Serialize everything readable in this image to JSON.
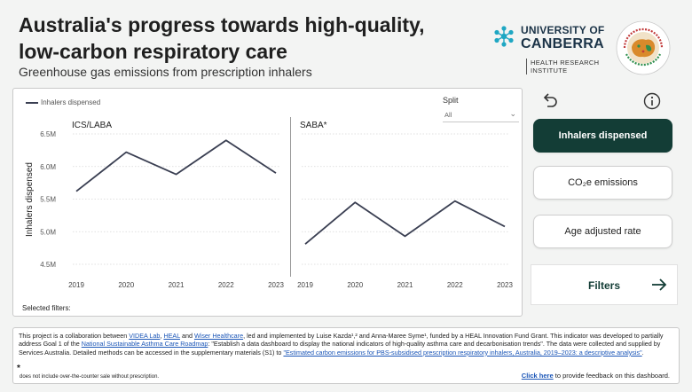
{
  "header": {
    "title": "Australia's progress towards high-quality, low-carbon respiratory care",
    "subtitle": "Greenhouse gas emissions from prescription inhalers",
    "uc_line1": "UNIVERSITY OF",
    "uc_line2": "CANBERRA",
    "uc_sub1": "HEALTH RESEARCH",
    "uc_sub2": "INSTITUTE",
    "heal_logo": "HEALTHY ENVIRONMENTS AND LIVES",
    "colors": {
      "accent": "#133d36",
      "uc_blue": "#1b3347",
      "uc_teal": "#1fa7c3"
    }
  },
  "chart": {
    "legend_label": "Inhalers dispensed",
    "split_label": "Split",
    "split_value": "All",
    "selected_filters_label": "Selected filters:"
  },
  "chart_data": {
    "type": "line",
    "ylabel": "Inhalers dispensed",
    "ylim": [
      4.5,
      6.5
    ],
    "yticks": [
      4.5,
      5.0,
      5.5,
      6.0,
      6.5
    ],
    "ytick_labels": [
      "4.5M",
      "5.0M",
      "5.5M",
      "6.0M",
      "6.5M"
    ],
    "x": [
      "2019",
      "2020",
      "2021",
      "2022",
      "2023"
    ],
    "series": [
      {
        "name": "ICS/LABA",
        "values": [
          5.62,
          6.22,
          5.88,
          6.4,
          5.9
        ]
      },
      {
        "name": "SABA*",
        "values": [
          4.81,
          5.45,
          4.93,
          5.47,
          5.08
        ]
      }
    ],
    "line_color": "#3a3f52"
  },
  "sidebar": {
    "buttons": [
      {
        "label": "Inhalers dispensed",
        "active": true
      },
      {
        "label": "CO₂e emissions",
        "active": false
      },
      {
        "label": "Age adjusted rate",
        "active": false
      }
    ],
    "filters_label": "Filters"
  },
  "footer": {
    "p1": "This project is a collaboration between ",
    "link_videa": "VIDEA Lab",
    "c1": ", ",
    "link_heal": "HEAL",
    "c2": " and ",
    "link_wiser": "Wiser Healthcare",
    "p2": ", led and implemented by Luise Kazda¹,² and Anna-Maree Syme¹, funded by a HEAL Innovation Fund Grant. This indicator was developed to partially address Goal 1 of the ",
    "link_roadmap": "National Sustainable Asthma Care Roadmap",
    "p3": ": \"Establish a data dashboard to display the national indicators of high-quality asthma care and decarbonisation trends\". The data were collected and supplied by Services Australia. Detailed methods can be accessed in the supplementary materials (S1) to ",
    "link_paper": "\"Estimated carbon emissions for PBS-subsidised prescription respiratory inhalers, Australia, 2019–2023: a descriptive analysis\"",
    "p4": ".",
    "footnote_star": "*",
    "footnote": "does not include over-the-counter sale without prescription.",
    "feedback_link": "Click here",
    "feedback_rest": " to provide feedback on this dashboard."
  }
}
